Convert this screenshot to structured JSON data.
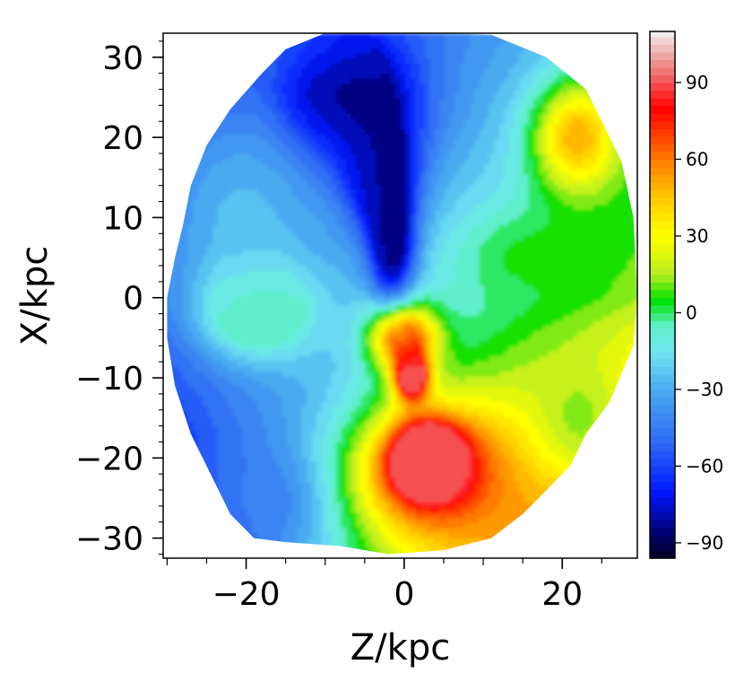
{
  "chart_data": {
    "type": "heatmap",
    "subtype": "filled-contour",
    "title": "",
    "xlabel": "Z/kpc",
    "ylabel": "X/kpc",
    "xlim": [
      -30.5,
      29.5
    ],
    "ylim": [
      -32.5,
      33
    ],
    "x_ticks": [
      -20,
      0,
      20
    ],
    "x_tick_labels": [
      "−20",
      "0",
      "20"
    ],
    "y_ticks": [
      30,
      20,
      10,
      0,
      -10,
      -20,
      -30
    ],
    "y_tick_labels": [
      "30",
      "20",
      "10",
      "0",
      "−10",
      "−20",
      "−30"
    ],
    "colorbar": {
      "range": [
        -96,
        110
      ],
      "ticks": [
        90,
        60,
        30,
        0,
        -30,
        -60,
        -90
      ],
      "tick_labels": [
        "90",
        "60",
        "30",
        "0",
        "−30",
        "−60",
        "−90"
      ],
      "colormap": "jet-like",
      "color_stops": [
        {
          "value": -96,
          "color": "#000020"
        },
        {
          "value": -85,
          "color": "#00007a"
        },
        {
          "value": -70,
          "color": "#0018ff"
        },
        {
          "value": -50,
          "color": "#2f6cf4"
        },
        {
          "value": -30,
          "color": "#4aaaf0"
        },
        {
          "value": -15,
          "color": "#70e6f2"
        },
        {
          "value": -5,
          "color": "#5ef0c8"
        },
        {
          "value": 5,
          "color": "#00e000"
        },
        {
          "value": 15,
          "color": "#b8ee20"
        },
        {
          "value": 30,
          "color": "#ffff00"
        },
        {
          "value": 45,
          "color": "#ffc800"
        },
        {
          "value": 60,
          "color": "#ff7a00"
        },
        {
          "value": 70,
          "color": "#ff3c00"
        },
        {
          "value": 80,
          "color": "#ff0000"
        },
        {
          "value": 95,
          "color": "#f07a7a"
        },
        {
          "value": 110,
          "color": "#f0f0f0"
        }
      ]
    },
    "domain_boundary": [
      [
        -10,
        33
      ],
      [
        5,
        33
      ],
      [
        11,
        32.8
      ],
      [
        18,
        30
      ],
      [
        23,
        26
      ],
      [
        27.5,
        17
      ],
      [
        29,
        10
      ],
      [
        29.5,
        0
      ],
      [
        29,
        -6
      ],
      [
        26,
        -13
      ],
      [
        23,
        -17
      ],
      [
        21,
        -21
      ],
      [
        18,
        -24
      ],
      [
        15,
        -27
      ],
      [
        11,
        -30
      ],
      [
        5,
        -31.5
      ],
      [
        -2,
        -32
      ],
      [
        -8,
        -31
      ],
      [
        -15,
        -30.5
      ],
      [
        -19,
        -30
      ],
      [
        -22,
        -27
      ],
      [
        -25,
        -21
      ],
      [
        -27,
        -17
      ],
      [
        -29,
        -11
      ],
      [
        -30,
        -5
      ],
      [
        -30,
        0
      ],
      [
        -29,
        5
      ],
      [
        -28,
        9
      ],
      [
        -27,
        14
      ],
      [
        -25,
        19
      ],
      [
        -22,
        23.5
      ],
      [
        -18,
        28
      ],
      [
        -15,
        31
      ]
    ],
    "features": [
      {
        "x": -9,
        "y": 27,
        "value": -92,
        "sx": 4,
        "sy": 4,
        "region": "blue upper lobe"
      },
      {
        "x": -6,
        "y": 24,
        "value": -85,
        "sx": 6,
        "sy": 6
      },
      {
        "x": -3,
        "y": 15,
        "value": -88,
        "sx": 3,
        "sy": 5
      },
      {
        "x": -1.5,
        "y": 6,
        "value": -90,
        "sx": 2,
        "sy": 5
      },
      {
        "x": -20,
        "y": 10,
        "value": -25,
        "sx": 9,
        "sy": 11
      },
      {
        "x": -13,
        "y": 31,
        "value": -50,
        "sx": 6,
        "sy": 3
      },
      {
        "x": 3,
        "y": -20,
        "value": 100,
        "sx": 3,
        "sy": 3,
        "region": "red lower lobe"
      },
      {
        "x": 1,
        "y": -10,
        "value": 98,
        "sx": 1.5,
        "sy": 2
      },
      {
        "x": 4,
        "y": -22,
        "value": 85,
        "sx": 7,
        "sy": 6
      },
      {
        "x": 0,
        "y": -5,
        "value": 75,
        "sx": 3,
        "sy": 3
      },
      {
        "x": -18,
        "y": -2,
        "value": 5,
        "sx": 5,
        "sy": 4,
        "region": "green left arm"
      },
      {
        "x": 16,
        "y": 5,
        "value": 5,
        "sx": 6,
        "sy": 4,
        "region": "green right arm"
      },
      {
        "x": 22,
        "y": 20,
        "value": 50,
        "sx": 4,
        "sy": 5
      },
      {
        "x": -18,
        "y": -25,
        "value": -45,
        "sx": 5,
        "sy": 4
      },
      {
        "x": 22,
        "y": -15,
        "value": 12,
        "sx": 5,
        "sy": 6
      }
    ]
  }
}
